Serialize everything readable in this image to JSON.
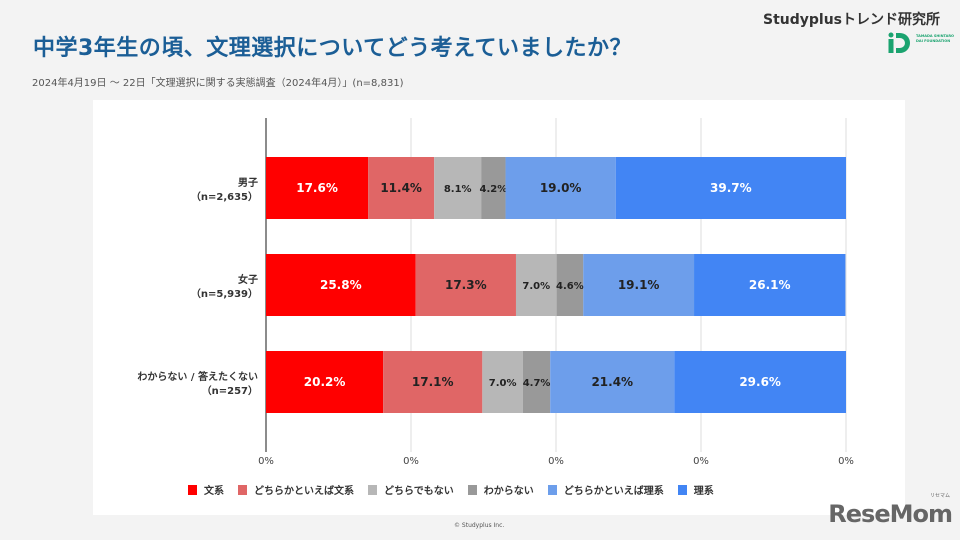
{
  "header": {
    "title": "中学3年生の頃、文理選択についてどう考えていましたか？",
    "subtitle": "2024年4月19日 〜 22日「文理選択に関する実態調査（2024年4月）」(n=8,831)",
    "brand": "Studyplusトレンド研究所",
    "logo_text": "TAMADA SHINTARO DAI FOUNDATION"
  },
  "footer": {
    "copyright": "© Studyplus Inc.",
    "watermark": "ReseMom",
    "watermark_kana": "リセマム"
  },
  "chart_data": {
    "type": "bar",
    "orientation": "horizontal",
    "stacked": true,
    "title": "",
    "xlim": [
      0,
      100
    ],
    "x_tick_labels": [
      "0%",
      "0%",
      "0%",
      "0%",
      "0%"
    ],
    "grid": true,
    "legend_position": "bottom",
    "categories": [
      {
        "label": "男子",
        "n": "（n=2,635）"
      },
      {
        "label": "女子",
        "n": "（n=5,939）"
      },
      {
        "label": "わからない / 答えたくない",
        "n": "（n=257）"
      }
    ],
    "series": [
      {
        "name": "文系",
        "color": "#ff0000",
        "label_color": "#ffffff",
        "values": [
          17.6,
          25.8,
          20.2
        ],
        "labels": [
          "17.6%",
          "25.8%",
          "20.2%"
        ]
      },
      {
        "name": "どちらかといえば文系",
        "color": "#e06666",
        "label_color": "#222222",
        "values": [
          11.4,
          17.3,
          17.1
        ],
        "labels": [
          "11.4%",
          "17.3%",
          "17.1%"
        ]
      },
      {
        "name": "どちらでもない",
        "color": "#b7b7b7",
        "label_color": "#222222",
        "values": [
          8.1,
          7.0,
          7.0
        ],
        "labels": [
          "8.1%",
          "7.0%",
          "7.0%"
        ]
      },
      {
        "name": "わからない",
        "color": "#999999",
        "label_color": "#222222",
        "values": [
          4.2,
          4.6,
          4.7
        ],
        "labels": [
          "4.2%",
          "4.6%",
          "4.7%"
        ]
      },
      {
        "name": "どちらかといえば理系",
        "color": "#6d9eeb",
        "label_color": "#222222",
        "values": [
          19.0,
          19.1,
          21.4
        ],
        "labels": [
          "19.0%",
          "19.1%",
          "21.4%"
        ]
      },
      {
        "name": "理系",
        "color": "#4285f4",
        "label_color": "#ffffff",
        "values": [
          39.7,
          26.1,
          29.6
        ],
        "labels": [
          "39.7%",
          "26.1%",
          "29.6%"
        ]
      }
    ]
  }
}
